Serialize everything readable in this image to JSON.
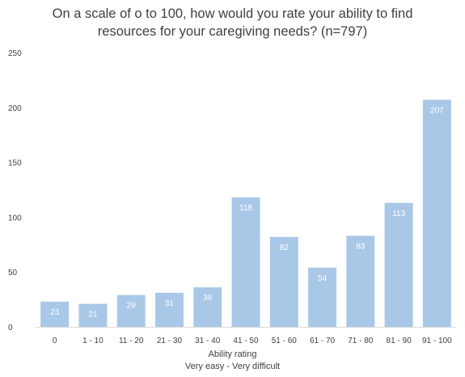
{
  "chart_data": {
    "type": "bar",
    "title_lines": [
      "On a scale of o to 100, how would you rate your ability to find",
      "resources for your caregiving needs? (n=797)"
    ],
    "xlabel_lines": [
      "Ability rating",
      "Very easy - Very difficult"
    ],
    "ylabel": "",
    "categories": [
      "0",
      "1 - 10",
      "11 - 20",
      "21 - 30",
      "31 - 40",
      "41 - 50",
      "51 - 60",
      "61 - 70",
      "71 - 80",
      "81 - 90",
      "91 - 100"
    ],
    "values": [
      23,
      21,
      29,
      31,
      36,
      118,
      82,
      54,
      83,
      113,
      207
    ],
    "ylim": [
      0,
      250
    ],
    "yticks": [
      0,
      50,
      100,
      150,
      200,
      250
    ],
    "grid": false,
    "legend": "none",
    "data_labels": "inside-top",
    "colors": {
      "bar": "#a9c8e8",
      "data_label": "#ffffff",
      "text": "#404040",
      "axis": "#d9d9d9"
    }
  }
}
